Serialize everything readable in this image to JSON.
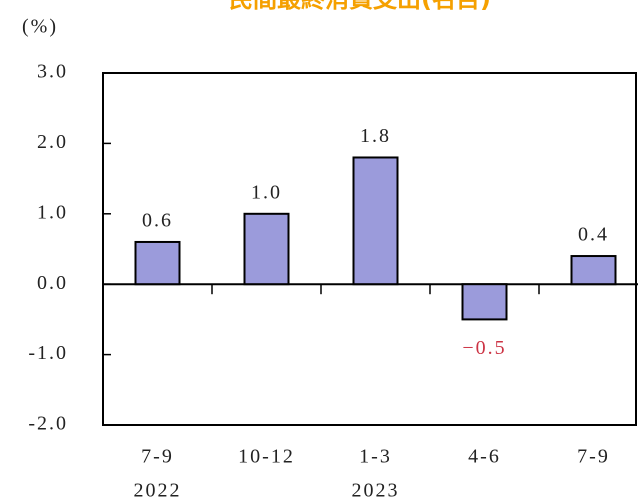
{
  "chart_data": {
    "type": "bar",
    "title": "民間最終消費支出(名目)",
    "y_axis_label": "(%)",
    "categories": [
      "7-9",
      "10-12",
      "1-3",
      "4-6",
      "7-9"
    ],
    "year_labels": [
      "2022",
      null,
      "2023",
      null,
      null
    ],
    "values": [
      0.6,
      1.0,
      1.8,
      -0.5,
      0.4
    ],
    "value_labels": [
      "0.6",
      "1.0",
      "1.8",
      "−0.5",
      "0.4"
    ],
    "color": "#9b9bdb",
    "negative_label_color": "#cc3344",
    "ylim": [
      -2,
      3
    ],
    "yticks": [
      {
        "value": -2,
        "label": "-2.0"
      },
      {
        "value": -1,
        "label": "-1.0"
      },
      {
        "value": 0,
        "label": "0.0"
      },
      {
        "value": 1,
        "label": "1.0"
      },
      {
        "value": 2,
        "label": "2.0"
      },
      {
        "value": 3,
        "label": "3.0"
      }
    ],
    "grid": false
  }
}
